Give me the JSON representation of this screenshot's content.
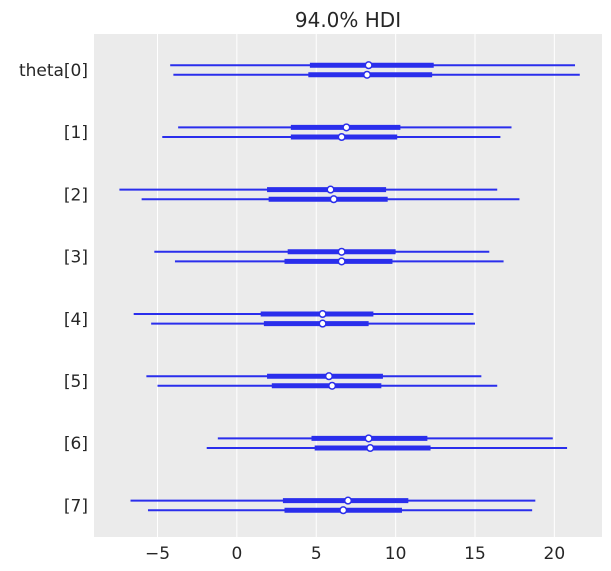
{
  "chart_data": {
    "type": "forest",
    "title": "94.0% HDI",
    "xlim": [
      -9,
      23
    ],
    "xticks": [
      -5,
      0,
      5,
      10,
      15,
      20
    ],
    "xtick_labels": [
      "−5",
      "0",
      "5",
      "10",
      "15",
      "20"
    ],
    "grid": true,
    "colors": {
      "background": "#ebebeb",
      "grid": "#ffffff",
      "line": "#2a2eec",
      "text": "#262626"
    },
    "rows": [
      {
        "label": "theta[0]",
        "chains": [
          {
            "hdi": [
              -4.2,
              21.3
            ],
            "iqr": [
              4.6,
              12.4
            ],
            "median": 8.3
          },
          {
            "hdi": [
              -4.0,
              21.6
            ],
            "iqr": [
              4.5,
              12.3
            ],
            "median": 8.2
          }
        ]
      },
      {
        "label": "[1]",
        "chains": [
          {
            "hdi": [
              -3.7,
              17.3
            ],
            "iqr": [
              3.4,
              10.3
            ],
            "median": 6.9
          },
          {
            "hdi": [
              -4.7,
              16.6
            ],
            "iqr": [
              3.4,
              10.1
            ],
            "median": 6.6
          }
        ]
      },
      {
        "label": "[2]",
        "chains": [
          {
            "hdi": [
              -7.4,
              16.4
            ],
            "iqr": [
              1.9,
              9.4
            ],
            "median": 5.9
          },
          {
            "hdi": [
              -6.0,
              17.8
            ],
            "iqr": [
              2.0,
              9.5
            ],
            "median": 6.1
          }
        ]
      },
      {
        "label": "[3]",
        "chains": [
          {
            "hdi": [
              -5.2,
              15.9
            ],
            "iqr": [
              3.2,
              10.0
            ],
            "median": 6.6
          },
          {
            "hdi": [
              -3.9,
              16.8
            ],
            "iqr": [
              3.0,
              9.8
            ],
            "median": 6.6
          }
        ]
      },
      {
        "label": "[4]",
        "chains": [
          {
            "hdi": [
              -6.5,
              14.9
            ],
            "iqr": [
              1.5,
              8.6
            ],
            "median": 5.4
          },
          {
            "hdi": [
              -5.4,
              15.0
            ],
            "iqr": [
              1.7,
              8.3
            ],
            "median": 5.4
          }
        ]
      },
      {
        "label": "[5]",
        "chains": [
          {
            "hdi": [
              -5.7,
              15.4
            ],
            "iqr": [
              1.9,
              9.2
            ],
            "median": 5.8
          },
          {
            "hdi": [
              -5.0,
              16.4
            ],
            "iqr": [
              2.2,
              9.1
            ],
            "median": 6.0
          }
        ]
      },
      {
        "label": "[6]",
        "chains": [
          {
            "hdi": [
              -1.2,
              19.9
            ],
            "iqr": [
              4.7,
              12.0
            ],
            "median": 8.3
          },
          {
            "hdi": [
              -1.9,
              20.8
            ],
            "iqr": [
              4.9,
              12.2
            ],
            "median": 8.4
          }
        ]
      },
      {
        "label": "[7]",
        "chains": [
          {
            "hdi": [
              -6.7,
              18.8
            ],
            "iqr": [
              2.9,
              10.8
            ],
            "median": 7.0
          },
          {
            "hdi": [
              -5.6,
              18.6
            ],
            "iqr": [
              3.0,
              10.4
            ],
            "median": 6.7
          }
        ]
      }
    ]
  }
}
